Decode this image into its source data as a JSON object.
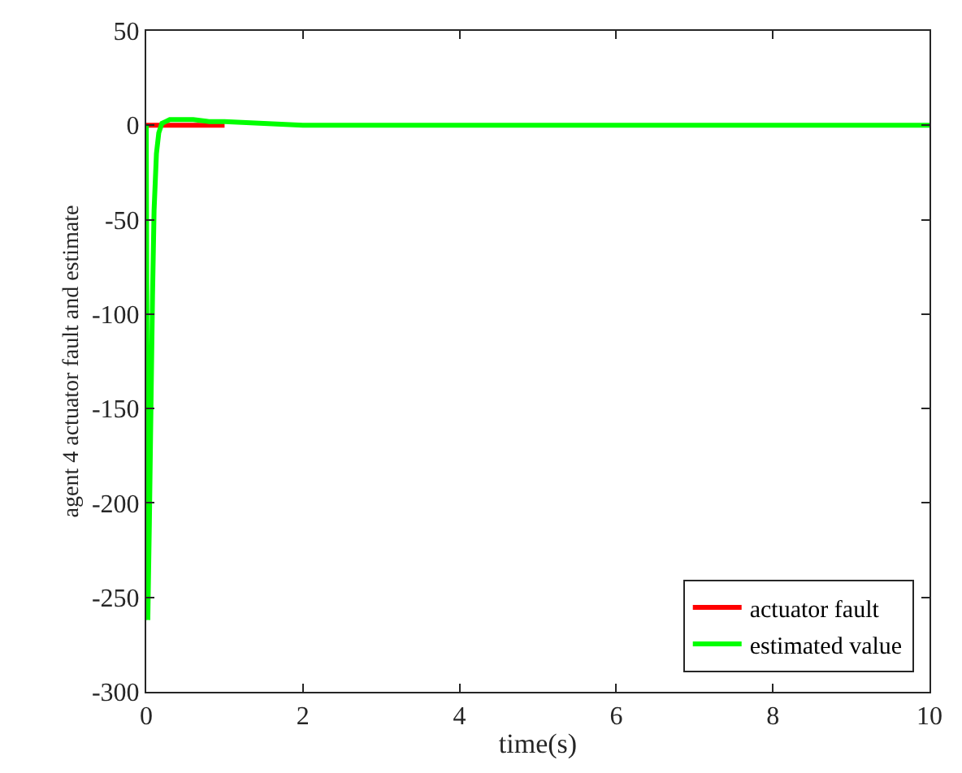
{
  "chart_data": {
    "type": "line",
    "xlabel": "time(s)",
    "ylabel": "agent 4 actuator fault and estimate",
    "xlim": [
      0,
      10
    ],
    "xticks": [
      0,
      2,
      4,
      6,
      8,
      10
    ],
    "ylim": [
      -300,
      50
    ],
    "yticks": [
      -300,
      -250,
      -200,
      -150,
      -100,
      -50,
      0,
      50
    ],
    "legend": "bottom right",
    "marker": "none",
    "line_style": "solid",
    "series": [
      {
        "name": "actuator fault",
        "color": "#ff0000",
        "x": [
          0,
          0.5,
          1
        ],
        "values": [
          0,
          0,
          0
        ]
      },
      {
        "name": "estimated value",
        "color": "#00ff00",
        "x": [
          0,
          0.02,
          0.04,
          0.06,
          0.08,
          0.1,
          0.13,
          0.16,
          0.2,
          0.25,
          0.3,
          0.4,
          0.6,
          0.8,
          1,
          1.5,
          2,
          3,
          4,
          6,
          8,
          10
        ],
        "values": [
          0,
          -262,
          -210,
          -150,
          -90,
          -45,
          -15,
          -4,
          1,
          2,
          3,
          3,
          3,
          2,
          2,
          1,
          0,
          0,
          0,
          0,
          0,
          0
        ]
      }
    ]
  }
}
